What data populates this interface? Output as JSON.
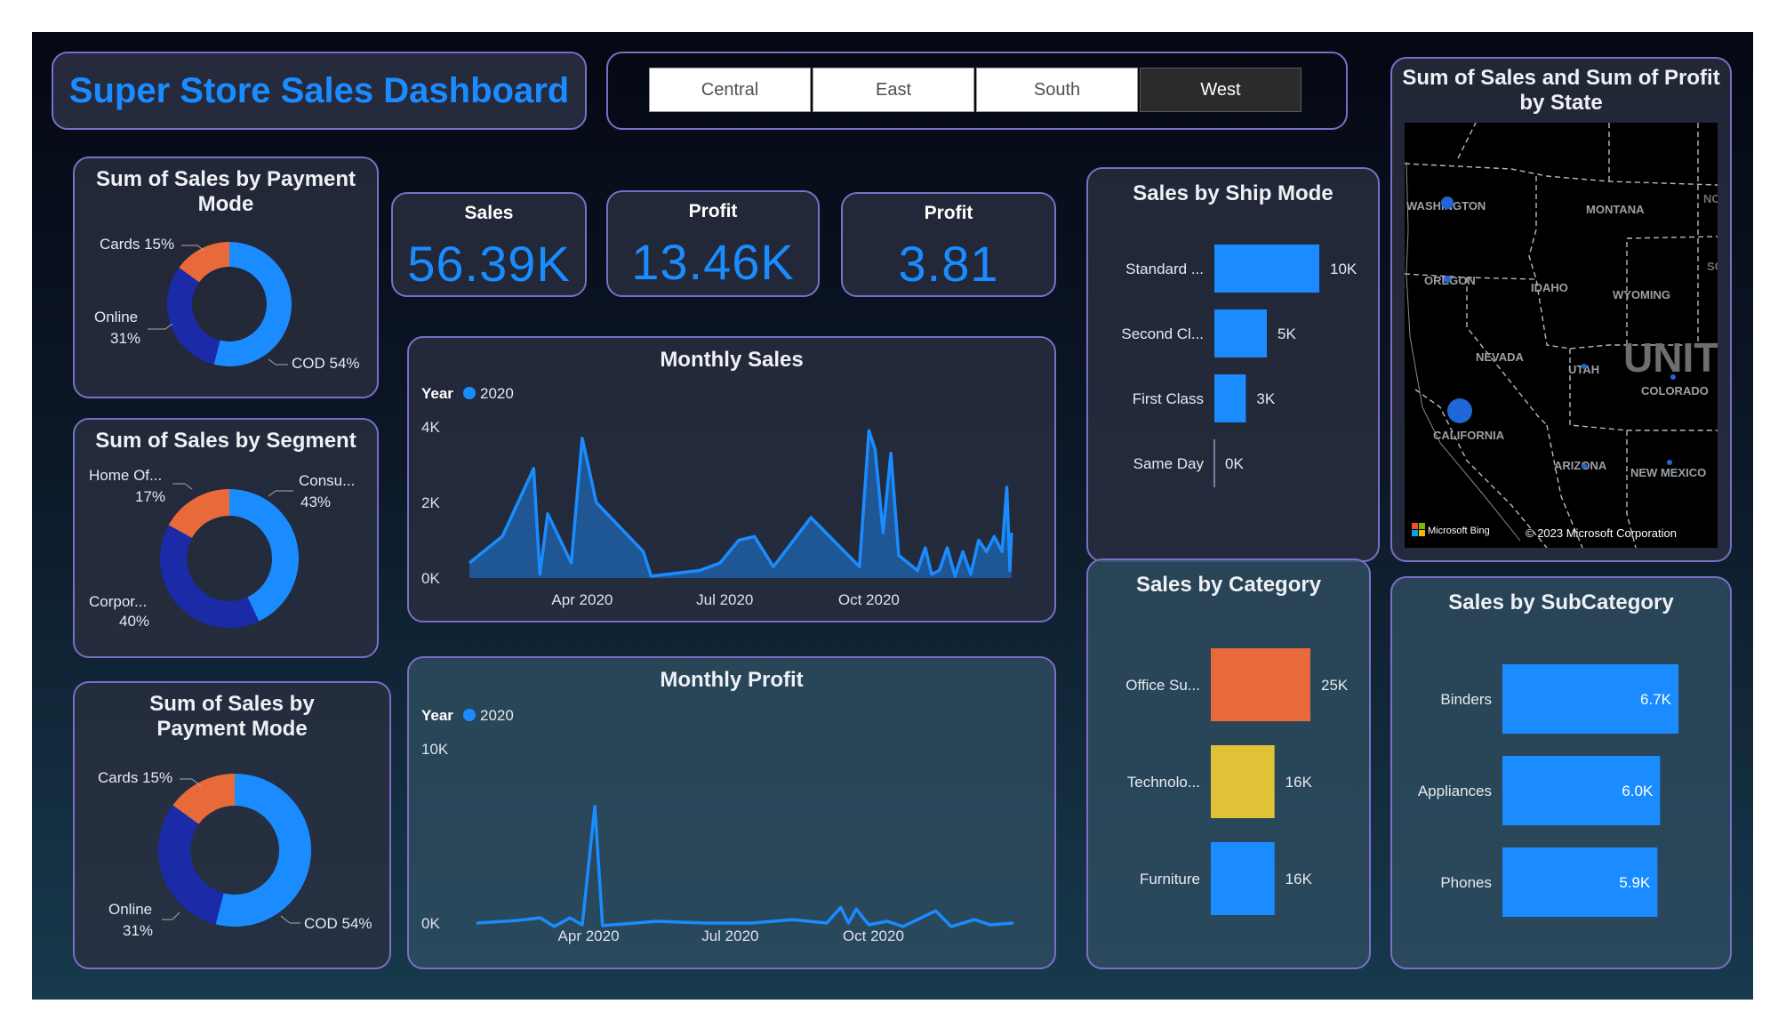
{
  "title": "Super Store Sales Dashboard",
  "regions": [
    {
      "label": "Central",
      "active": false
    },
    {
      "label": "East",
      "active": false
    },
    {
      "label": "South",
      "active": false
    },
    {
      "label": "West",
      "active": true
    }
  ],
  "kpis": [
    {
      "label": "Sales",
      "value": "56.39K"
    },
    {
      "label": "Profit",
      "value": "13.46K"
    },
    {
      "label": "Profit",
      "value": "3.81"
    }
  ],
  "colors": {
    "accent": "#1a8cff",
    "navy": "#1b2ba8",
    "orange": "#e8693a",
    "yellow": "#e0c237"
  },
  "chart_data": [
    {
      "type": "donut",
      "title": "Sum of Sales by Payment Mode",
      "slices": [
        {
          "label": "COD",
          "display": "COD 54%",
          "value": 54
        },
        {
          "label": "Online",
          "display": "Online 31%",
          "value": 31
        },
        {
          "label": "Cards",
          "display": "Cards 15%",
          "value": 15
        }
      ]
    },
    {
      "type": "donut",
      "title": "Sum of Sales by Segment",
      "slices": [
        {
          "label": "Consu...",
          "display": "43%",
          "value": 43
        },
        {
          "label": "Corpor...",
          "display": "40%",
          "value": 40
        },
        {
          "label": "Home Of...",
          "display": "17%",
          "value": 17
        }
      ]
    },
    {
      "type": "donut",
      "title": "Sum of Sales by Payment Mode",
      "slices": [
        {
          "label": "COD",
          "display": "COD 54%",
          "value": 54
        },
        {
          "label": "Online",
          "display": "Online 31%",
          "value": 31
        },
        {
          "label": "Cards",
          "display": "Cards 15%",
          "value": 15
        }
      ]
    },
    {
      "type": "area",
      "title": "Monthly Sales",
      "legend_title": "Year",
      "series_name": "2020",
      "yticks": [
        "0K",
        "2K",
        "4K"
      ],
      "ylim": [
        0,
        4000
      ],
      "xlim": [
        "2020-01-20",
        "2020-12-30"
      ],
      "xticks": [
        {
          "date": "2020-04-01",
          "label": "Apr 2020"
        },
        {
          "date": "2020-07-01",
          "label": "Jul 2020"
        },
        {
          "date": "2020-10-01",
          "label": "Oct 2020"
        }
      ],
      "points": [
        [
          "2020-01-20",
          400
        ],
        [
          "2020-02-10",
          1100
        ],
        [
          "2020-03-01",
          2900
        ],
        [
          "2020-03-05",
          100
        ],
        [
          "2020-03-10",
          1700
        ],
        [
          "2020-03-25",
          400
        ],
        [
          "2020-04-01",
          3700
        ],
        [
          "2020-04-10",
          2000
        ],
        [
          "2020-05-10",
          700
        ],
        [
          "2020-05-15",
          50
        ],
        [
          "2020-06-15",
          200
        ],
        [
          "2020-06-28",
          400
        ],
        [
          "2020-07-10",
          1000
        ],
        [
          "2020-07-20",
          1100
        ],
        [
          "2020-08-01",
          300
        ],
        [
          "2020-08-25",
          1600
        ],
        [
          "2020-09-25",
          300
        ],
        [
          "2020-10-01",
          3900
        ],
        [
          "2020-10-05",
          3400
        ],
        [
          "2020-10-10",
          1200
        ],
        [
          "2020-10-15",
          3300
        ],
        [
          "2020-10-20",
          600
        ],
        [
          "2020-11-01",
          200
        ],
        [
          "2020-11-06",
          800
        ],
        [
          "2020-11-10",
          100
        ],
        [
          "2020-11-15",
          200
        ],
        [
          "2020-11-20",
          800
        ],
        [
          "2020-11-25",
          50
        ],
        [
          "2020-11-30",
          700
        ],
        [
          "2020-12-05",
          100
        ],
        [
          "2020-12-10",
          1000
        ],
        [
          "2020-12-15",
          700
        ],
        [
          "2020-12-20",
          1100
        ],
        [
          "2020-12-25",
          700
        ],
        [
          "2020-12-28",
          2400
        ],
        [
          "2020-12-30",
          200
        ],
        [
          "2020-12-31",
          1200
        ]
      ]
    },
    {
      "type": "line",
      "title": "Monthly Profit",
      "legend_title": "Year",
      "series_name": "2020",
      "yticks": [
        "0K",
        "10K"
      ],
      "ylim": [
        0,
        10000
      ],
      "xlim": [
        "2020-01-20",
        "2020-12-30"
      ],
      "xticks": [
        {
          "date": "2020-04-01",
          "label": "Apr 2020"
        },
        {
          "date": "2020-07-01",
          "label": "Jul 2020"
        },
        {
          "date": "2020-10-01",
          "label": "Oct 2020"
        }
      ],
      "points": [
        [
          "2020-01-20",
          0
        ],
        [
          "2020-02-15",
          150
        ],
        [
          "2020-03-01",
          300
        ],
        [
          "2020-03-10",
          -200
        ],
        [
          "2020-03-20",
          300
        ],
        [
          "2020-03-28",
          -100
        ],
        [
          "2020-04-05",
          6700
        ],
        [
          "2020-04-10",
          -150
        ],
        [
          "2020-05-15",
          100
        ],
        [
          "2020-06-15",
          0
        ],
        [
          "2020-07-15",
          0
        ],
        [
          "2020-08-10",
          200
        ],
        [
          "2020-09-01",
          0
        ],
        [
          "2020-09-10",
          900
        ],
        [
          "2020-09-15",
          0
        ],
        [
          "2020-09-20",
          800
        ],
        [
          "2020-09-28",
          -100
        ],
        [
          "2020-10-10",
          100
        ],
        [
          "2020-10-20",
          -200
        ],
        [
          "2020-11-10",
          700
        ],
        [
          "2020-11-20",
          -200
        ],
        [
          "2020-12-05",
          200
        ],
        [
          "2020-12-15",
          -100
        ],
        [
          "2020-12-30",
          0
        ]
      ]
    },
    {
      "type": "bar",
      "orientation": "horizontal",
      "title": "Sales by Ship Mode",
      "categories": [
        "Standard ...",
        "Second Cl...",
        "First Class",
        "Same Day"
      ],
      "values": [
        10000,
        5000,
        3000,
        0
      ],
      "value_labels": [
        "10K",
        "5K",
        "3K",
        "0K"
      ]
    },
    {
      "type": "bar",
      "orientation": "horizontal",
      "title": "Sales by Category",
      "categories": [
        "Office Su...",
        "Technolo...",
        "Furniture"
      ],
      "values": [
        25000,
        16000,
        16000
      ],
      "value_labels": [
        "25K",
        "16K",
        "16K"
      ]
    },
    {
      "type": "bar",
      "orientation": "horizontal",
      "title": "Sales by SubCategory",
      "categories": [
        "Binders",
        "Appliances",
        "Phones"
      ],
      "values": [
        6700,
        6000,
        5900
      ],
      "value_labels": [
        "6.7K",
        "6.0K",
        "5.9K"
      ]
    }
  ],
  "map": {
    "title": "Sum of Sales and Sum of Profit by State",
    "states": [
      "WASHINGTON",
      "MONTANA",
      "OREGON",
      "IDAHO",
      "WYOMING",
      "NEVADA",
      "UTAH",
      "COLORADO",
      "CALIFORNIA",
      "ARIZONA",
      "NEW MEXICO"
    ],
    "overlay_text": "UNIT",
    "edge_text": "NO",
    "edge_text2": "SO",
    "attribution": "Microsoft Bing",
    "copyright": "© 2023 Microsoft Corporation"
  }
}
